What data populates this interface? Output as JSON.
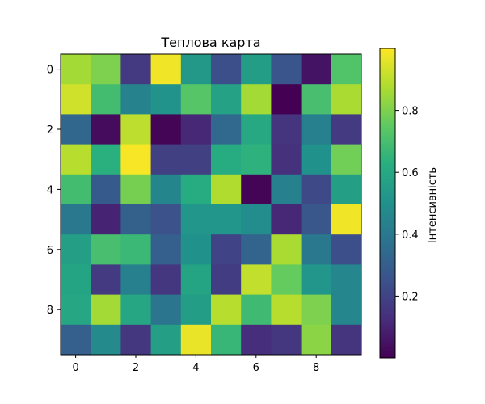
{
  "chart_data": {
    "type": "heatmap",
    "title": "Теплова карта",
    "xlabel": "",
    "ylabel": "",
    "colormap": "viridis",
    "x_ticks": [
      0,
      2,
      4,
      6,
      8
    ],
    "y_ticks": [
      0,
      2,
      4,
      6,
      8
    ],
    "x_tick_labels": [
      "0",
      "2",
      "4",
      "6",
      "8"
    ],
    "y_tick_labels": [
      "0",
      "2",
      "4",
      "6",
      "8"
    ],
    "vmin": 0.0,
    "vmax": 1.0,
    "rows": 10,
    "cols": 10,
    "values": [
      [
        0.86,
        0.8,
        0.17,
        0.98,
        0.53,
        0.24,
        0.55,
        0.26,
        0.05,
        0.72
      ],
      [
        0.93,
        0.69,
        0.44,
        0.51,
        0.73,
        0.57,
        0.86,
        0.0,
        0.7,
        0.87
      ],
      [
        0.33,
        0.03,
        0.9,
        0.01,
        0.11,
        0.34,
        0.6,
        0.15,
        0.43,
        0.17
      ],
      [
        0.89,
        0.63,
        0.99,
        0.19,
        0.19,
        0.61,
        0.64,
        0.14,
        0.5,
        0.78
      ],
      [
        0.69,
        0.28,
        0.79,
        0.45,
        0.61,
        0.88,
        0.01,
        0.43,
        0.22,
        0.56
      ],
      [
        0.4,
        0.1,
        0.31,
        0.25,
        0.52,
        0.52,
        0.48,
        0.11,
        0.27,
        0.98
      ],
      [
        0.56,
        0.7,
        0.67,
        0.3,
        0.5,
        0.2,
        0.32,
        0.87,
        0.4,
        0.24
      ],
      [
        0.58,
        0.17,
        0.43,
        0.16,
        0.58,
        0.18,
        0.91,
        0.76,
        0.52,
        0.46
      ],
      [
        0.59,
        0.86,
        0.59,
        0.39,
        0.55,
        0.89,
        0.68,
        0.89,
        0.8,
        0.46
      ],
      [
        0.3,
        0.47,
        0.16,
        0.56,
        0.97,
        0.66,
        0.13,
        0.16,
        0.82,
        0.15
      ]
    ],
    "colorbar": {
      "label": "Інтенсивність",
      "ticks": [
        0.2,
        0.4,
        0.6,
        0.8
      ],
      "tick_labels": [
        "0.2",
        "0.4",
        "0.6",
        "0.8"
      ],
      "min": 0.0,
      "max": 1.0
    }
  }
}
